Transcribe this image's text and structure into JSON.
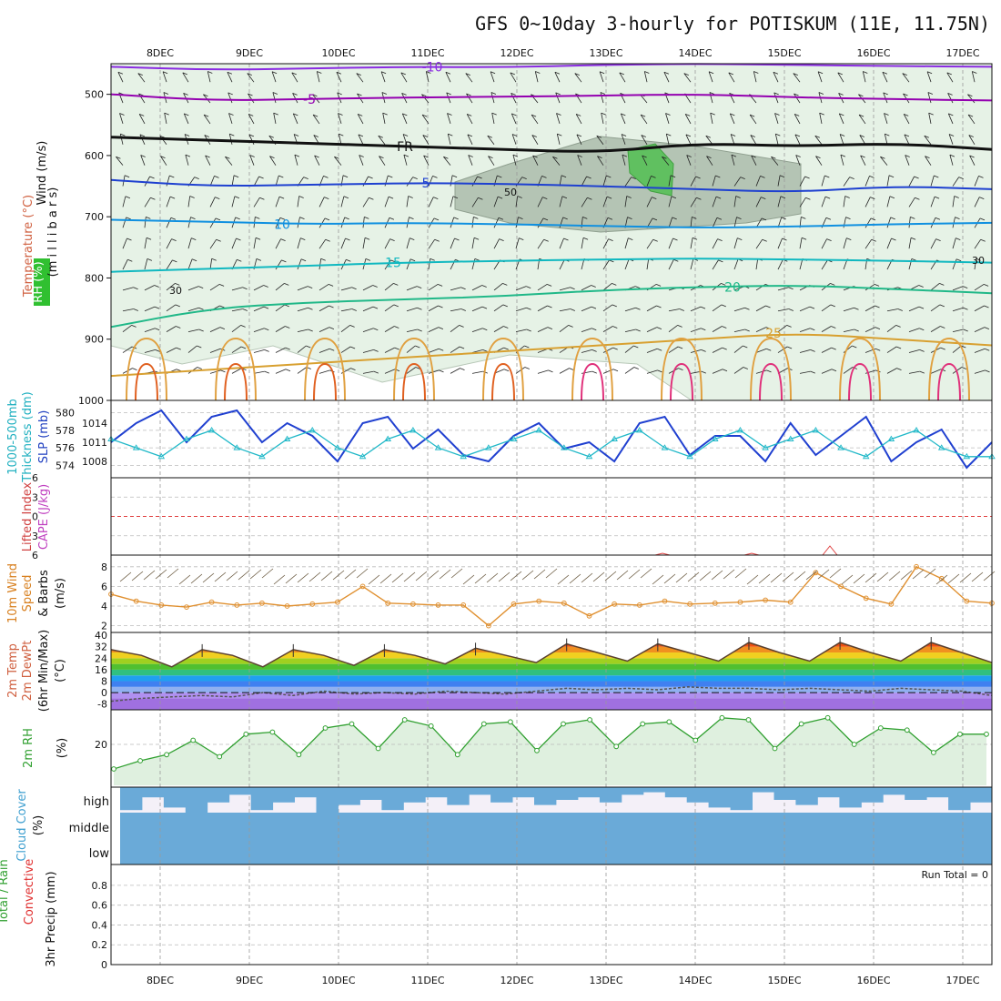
{
  "chart_data": {
    "type": "meteogram",
    "title": "GFS 0~10day 3-hourly for POTISKUM (11E, 11.75N)",
    "dates": [
      "8DEC",
      "9DEC",
      "10DEC",
      "11DEC",
      "12DEC",
      "13DEC",
      "14DEC",
      "15DEC",
      "16DEC",
      "17DEC"
    ],
    "panels": [
      {
        "id": "upper",
        "ylabels": [
          {
            "text": "Wind (m/s)",
            "color": "#111111"
          },
          {
            "text": "Temperature (°C)",
            "color": "#d06040"
          },
          {
            "text": "(m i l l i b a r s)",
            "color": "#111111"
          },
          {
            "text": "RH (%)",
            "color": "#ffffff"
          }
        ],
        "ylim": [
          1000,
          450
        ],
        "yticks": [
          500,
          600,
          700,
          800,
          900,
          1000
        ],
        "isotherms": [
          {
            "label": "-10",
            "color": "#8a2be2",
            "values": [
              455,
              460,
              458,
              455,
              456,
              452,
              450,
              452,
              454,
              455
            ]
          },
          {
            "label": "-5",
            "color": "#9400b0",
            "values": [
              500,
              510,
              508,
              505,
              504,
              502,
              500,
              505,
              508,
              510
            ]
          },
          {
            "label": "FR",
            "color": "#111111",
            "values": [
              570,
              575,
              580,
              585,
              590,
              595,
              580,
              585,
              580,
              590
            ]
          },
          {
            "label": "5",
            "color": "#1e40d0",
            "values": [
              640,
              650,
              648,
              645,
              646,
              650,
              655,
              660,
              650,
              655
            ]
          },
          {
            "label": "10",
            "color": "#1090e0",
            "values": [
              705,
              708,
              712,
              710,
              712,
              715,
              718,
              716,
              712,
              710
            ]
          },
          {
            "label": "15",
            "color": "#10b8c0",
            "values": [
              790,
              785,
              780,
              775,
              772,
              770,
              768,
              770,
              772,
              775
            ]
          },
          {
            "label": "20",
            "color": "#20b888",
            "values": [
              880,
              850,
              840,
              835,
              830,
              820,
              815,
              812,
              818,
              825
            ]
          },
          {
            "label": "25",
            "color": "#d8a030",
            "values": [
              960,
              950,
              940,
              930,
              920,
              910,
              900,
              890,
              900,
              910
            ]
          }
        ],
        "rh_labels": [
          "30",
          "50",
          "30"
        ]
      },
      {
        "id": "slp",
        "ylabels": [
          {
            "text": "1000-500mb",
            "color": "#20b0c0"
          },
          {
            "text": "Thickness (dm)",
            "color": "#20b0c0"
          },
          {
            "text": "SLP (mb)",
            "color": "#2040c0"
          }
        ],
        "left_ticks": [
          574,
          576,
          578,
          580
        ],
        "right_ticks": [
          1008,
          1011,
          1014
        ],
        "slp": [
          1011,
          1014,
          1016,
          1011,
          1015,
          1016,
          1011,
          1014,
          1012,
          1008,
          1014,
          1015,
          1010,
          1013,
          1009,
          1008,
          1012,
          1014,
          1010,
          1011,
          1008,
          1014,
          1015,
          1009,
          1012,
          1012,
          1008,
          1014,
          1009,
          1012,
          1015,
          1008,
          1011,
          1013,
          1007,
          1011
        ],
        "thickness": [
          577,
          576,
          575,
          577,
          578,
          576,
          575,
          577,
          578,
          576,
          575,
          577,
          578,
          576,
          575,
          576,
          577,
          578,
          576,
          575,
          577,
          578,
          576,
          575,
          577,
          578,
          576,
          577,
          578,
          576,
          575,
          577,
          578,
          576,
          575,
          575
        ]
      },
      {
        "id": "cape",
        "ylabels": [
          {
            "text": "CAPE (J/kg)",
            "color": "#c040c0"
          },
          {
            "text": "Lifted Index",
            "color": "#d04040"
          }
        ],
        "left_ticks": [
          -6,
          -3,
          0,
          3,
          6
        ]
      },
      {
        "id": "wind10",
        "ylabels": [
          {
            "text": "10m Wind",
            "color": "#d88020"
          },
          {
            "text": "Speed",
            "color": "#d88020"
          },
          {
            "text": "& Barbs",
            "color": "#111111"
          },
          {
            "text": "(m/s)",
            "color": "#111111"
          }
        ],
        "left_ticks": [
          2,
          4,
          6,
          8
        ],
        "speed": [
          5.2,
          4.5,
          4.1,
          3.9,
          4.4,
          4.1,
          4.3,
          4.0,
          4.2,
          4.4,
          6.0,
          4.3,
          4.2,
          4.1,
          4.1,
          2.0,
          4.2,
          4.5,
          4.3,
          3.0,
          4.2,
          4.1,
          4.5,
          4.2,
          4.3,
          4.4,
          4.6,
          4.4,
          7.4,
          6.0,
          4.8,
          4.2,
          8.0,
          6.8,
          4.5,
          4.3
        ]
      },
      {
        "id": "temp2m",
        "ylabels": [
          {
            "text": "2m Temp",
            "color": "#d06040"
          },
          {
            "text": "2m DewPt",
            "color": "#d06040"
          },
          {
            "text": "(6hr Min/Max)",
            "color": "#111111"
          },
          {
            "text": "(°C)",
            "color": "#111111"
          }
        ],
        "left_ticks": [
          -8,
          0,
          8,
          16,
          24,
          32,
          40
        ],
        "temp": [
          30,
          26,
          18,
          30,
          26,
          18,
          30,
          26,
          19,
          30,
          26,
          20,
          31,
          26,
          21,
          34,
          28,
          22,
          34,
          28,
          22,
          35,
          28,
          22,
          35,
          28,
          22,
          35,
          28,
          21
        ],
        "dewpt": [
          -6,
          -4,
          -3,
          -2,
          -3,
          0,
          -2,
          1,
          -1,
          0,
          -1,
          1,
          0,
          -1,
          1,
          3,
          2,
          3,
          2,
          4,
          3,
          3,
          2,
          3,
          2,
          1,
          3,
          2,
          1,
          -2
        ]
      },
      {
        "id": "rh2m",
        "ylabels": [
          {
            "text": "2m RH",
            "color": "#30a030"
          },
          {
            "text": "(%)",
            "color": "#111111"
          }
        ],
        "left_ticks": [
          20
        ],
        "rh": [
          8,
          12,
          15,
          22,
          14,
          25,
          26,
          15,
          28,
          30,
          18,
          32,
          29,
          15,
          30,
          31,
          17,
          30,
          32,
          19,
          30,
          31,
          22,
          33,
          32,
          18,
          30,
          33,
          20,
          28,
          27,
          16,
          25,
          25
        ]
      },
      {
        "id": "cloud",
        "ylabels": [
          {
            "text": "Cloud Cover",
            "color": "#40a0d0"
          },
          {
            "text": "(%)",
            "color": "#111111"
          }
        ],
        "levels": [
          "high",
          "middle",
          "low"
        ],
        "high": [
          90,
          40,
          80,
          100,
          60,
          30,
          90,
          60,
          40,
          100,
          70,
          50,
          90,
          60,
          40,
          70,
          30,
          60,
          40,
          70,
          50,
          40,
          60,
          30,
          20,
          40,
          60,
          80,
          90,
          20,
          50,
          70,
          40,
          80,
          60,
          30,
          50,
          40,
          90,
          60
        ]
      },
      {
        "id": "precip",
        "ylabels": [
          {
            "text": "Total / Rain",
            "color": "#30a030"
          },
          {
            "text": "Convective",
            "color": "#e03030"
          },
          {
            "text": "3hr Precip (mm)",
            "color": "#111111"
          }
        ],
        "left_ticks": [
          0,
          0.2,
          0.4,
          0.6,
          0.8
        ],
        "note": "Run Total = 0"
      }
    ]
  }
}
